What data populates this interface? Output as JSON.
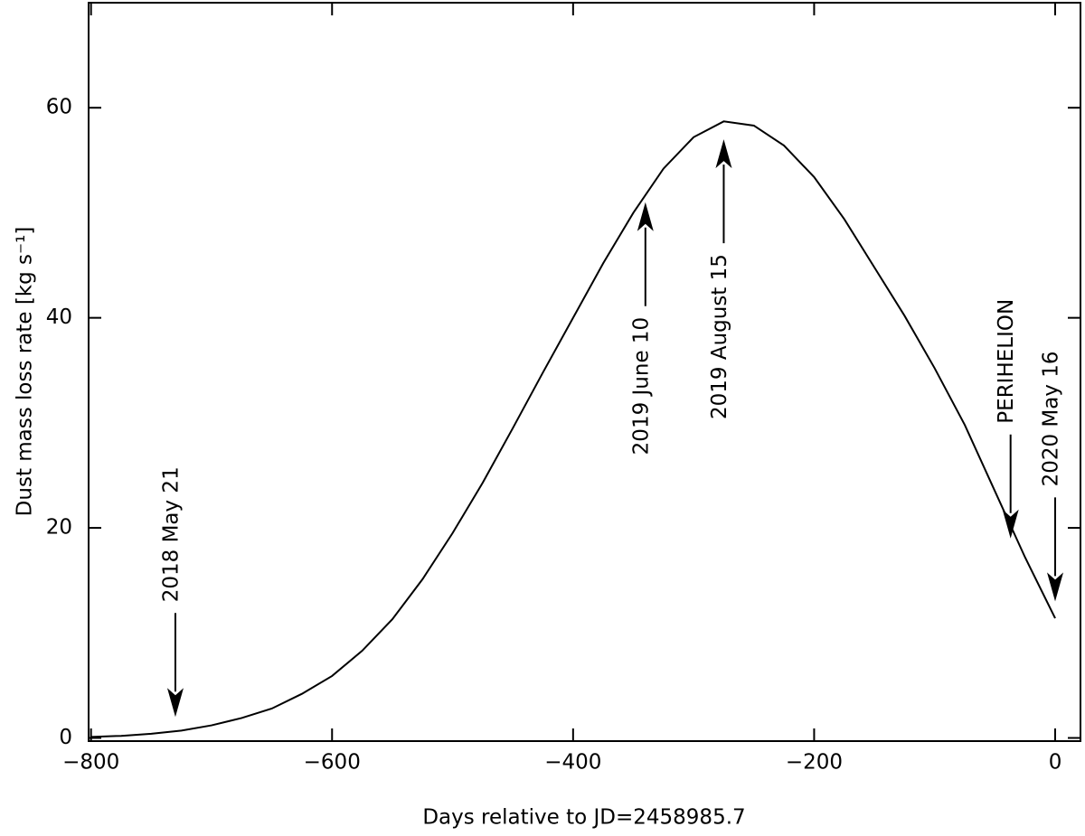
{
  "chart_data": {
    "type": "line",
    "x_label": "Days relative to JD=2458985.7",
    "y_label": "Dust mass loss rate [kg s⁻¹]",
    "x": [
      -800,
      -775,
      -750,
      -725,
      -700,
      -675,
      -650,
      -625,
      -600,
      -575,
      -550,
      -525,
      -500,
      -475,
      -450,
      -425,
      -400,
      -375,
      -350,
      -325,
      -300,
      -275,
      -250,
      -225,
      -200,
      -175,
      -150,
      -125,
      -100,
      -75,
      -50,
      -25,
      0
    ],
    "series": [
      {
        "color": "#000000",
        "values": [
          0.1,
          0.2,
          0.4,
          0.7,
          1.2,
          1.9,
          2.8,
          4.2,
          5.9,
          8.3,
          11.3,
          15.1,
          19.5,
          24.3,
          29.5,
          34.8,
          40.0,
          45.2,
          50.0,
          54.2,
          57.2,
          58.7,
          58.3,
          56.4,
          53.4,
          49.4,
          44.8,
          40.2,
          35.2,
          29.8,
          23.5,
          17.2,
          11.4
        ]
      }
    ],
    "xlim": [
      -802,
      21
    ],
    "ylim": [
      -0.3,
      70
    ],
    "xticks": [
      {
        "value": -800,
        "label": "−800"
      },
      {
        "value": -600,
        "label": "−600"
      },
      {
        "value": -400,
        "label": "−400"
      },
      {
        "value": -200,
        "label": "−200"
      },
      0
    ],
    "yticks": [
      0,
      20,
      40,
      60
    ],
    "annotations": [
      {
        "text": "2018 May 21",
        "x": -730,
        "y": 2,
        "arrow": "down"
      },
      {
        "text": "2019 June 10",
        "x": -340,
        "y": 51,
        "arrow": "up"
      },
      {
        "text": "2019 August 15",
        "x": -275,
        "y": 57,
        "arrow": "up"
      },
      {
        "text": "PERIHELION",
        "x": -37,
        "y": 19,
        "arrow": "down"
      },
      {
        "text": "2020 May 16",
        "x": 0,
        "y": 13,
        "arrow": "down"
      }
    ]
  }
}
